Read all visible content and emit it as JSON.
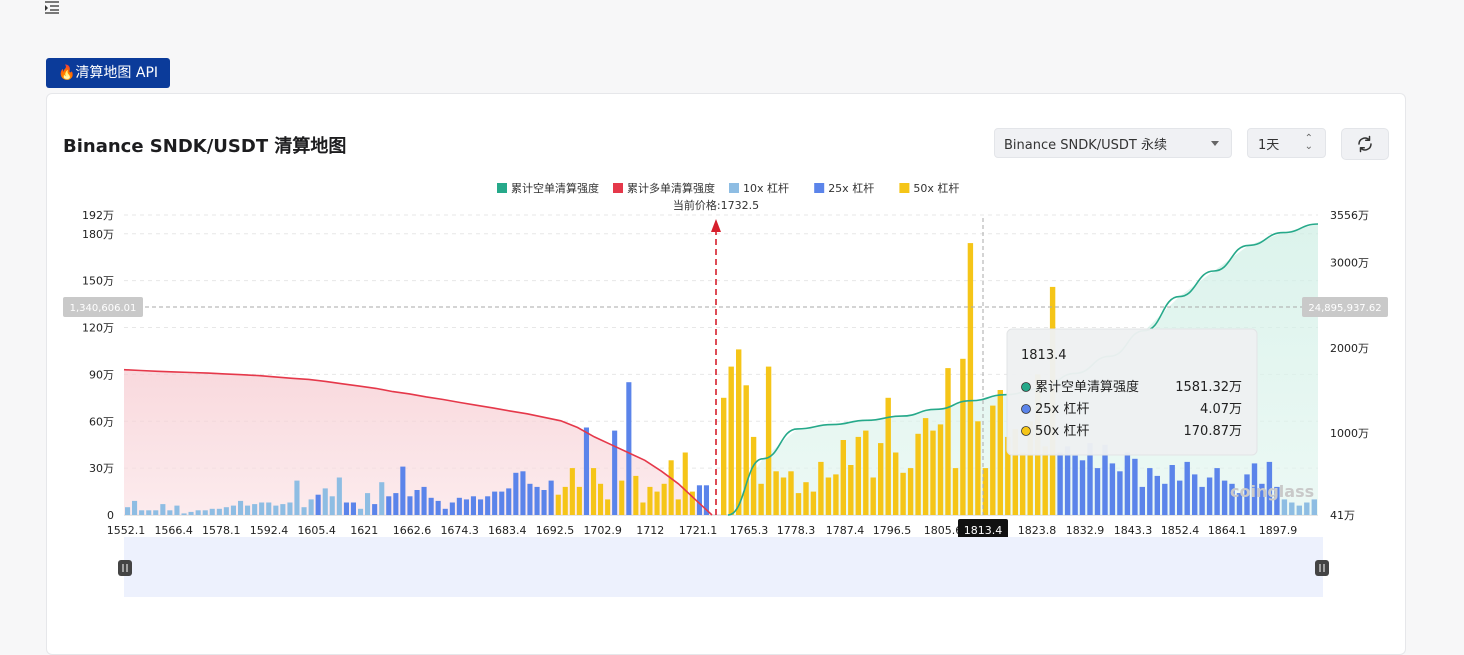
{
  "page": {
    "api_badge_label": "🔥清算地图 API",
    "card_title": "Binance SNDK/USDT 清算地图",
    "exchange_select": "Binance SNDK/USDT 永续",
    "range_select": "1天",
    "icons": {
      "menu": "menu-collapse-icon",
      "refresh": "refresh-icon",
      "flame": "flame-icon"
    }
  },
  "chart_data": {
    "type": "bar",
    "legend": [
      {
        "label": "累计空单清算强度",
        "color": "#26a98a"
      },
      {
        "label": "累计多单清算强度",
        "color": "#e5384a"
      },
      {
        "label": "10x 杠杆",
        "color": "#8ebde3"
      },
      {
        "label": "25x 杠杆",
        "color": "#5b84ea"
      },
      {
        "label": "50x 杠杆",
        "color": "#f5c518"
      }
    ],
    "current_price_label": "当前价格:1732.5",
    "current_price": 1732.5,
    "left_axis_ticks": [
      "0",
      "30万",
      "60万",
      "90万",
      "120万",
      "150万",
      "180万",
      "192万"
    ],
    "left_axis_values": [
      0,
      30,
      60,
      90,
      120,
      150,
      180,
      192
    ],
    "right_axis_ticks": [
      "41万",
      "1000万",
      "2000万",
      "3000万",
      "3556万"
    ],
    "right_axis_values": [
      41,
      1000,
      2000,
      3000,
      3556
    ],
    "x_tick_labels": [
      "1552.1",
      "1566.4",
      "1578.1",
      "1592.4",
      "1605.4",
      "1621",
      "1662.6",
      "1674.3",
      "1683.4",
      "1692.5",
      "1702.9",
      "1712",
      "1721.1",
      "1765.3",
      "1778.3",
      "1787.4",
      "1796.5",
      "1805.6",
      "1823.8",
      "1832.9",
      "1843.3",
      "1852.4",
      "1864.1",
      "1897.9"
    ],
    "crosshair": {
      "x_label": "1813.4",
      "left_value_label": "1,340,606.01",
      "right_value_label": "24,895,937.62"
    },
    "tooltip": {
      "title": "1813.4",
      "rows": [
        {
          "label": "累计空单清算强度",
          "value": "1581.32万",
          "color": "#26a98a"
        },
        {
          "label": "25x 杠杆",
          "value": "4.07万",
          "color": "#5b84ea"
        },
        {
          "label": "50x 杠杆",
          "value": "170.87万",
          "color": "#f5c518"
        }
      ]
    },
    "watermark": "coinglass",
    "unit_left": "万",
    "unit_right": "万",
    "long_side_bars": [
      [
        5,
        8,
        "10x"
      ],
      [
        9,
        8,
        "10x"
      ],
      [
        3,
        8,
        "10x"
      ],
      [
        3,
        8,
        "10x"
      ],
      [
        3,
        8,
        "10x"
      ],
      [
        7,
        8,
        "10x"
      ],
      [
        3,
        8,
        "10x"
      ],
      [
        6,
        8,
        "10x"
      ],
      [
        1,
        8,
        "10x"
      ],
      [
        2,
        8,
        "10x"
      ],
      [
        3,
        8,
        "10x"
      ],
      [
        3,
        8,
        "10x"
      ],
      [
        4,
        8,
        "10x"
      ],
      [
        4,
        8,
        "10x"
      ],
      [
        5,
        8,
        "10x"
      ],
      [
        6,
        8,
        "10x"
      ],
      [
        9,
        8,
        "10x"
      ],
      [
        6,
        8,
        "10x"
      ],
      [
        7,
        8,
        "10x"
      ],
      [
        8,
        8,
        "10x"
      ],
      [
        8,
        8,
        "10x"
      ],
      [
        6,
        8,
        "10x"
      ],
      [
        7,
        8,
        "10x"
      ],
      [
        8,
        8,
        "10x"
      ],
      [
        22,
        8,
        "10x"
      ],
      [
        5,
        8,
        "10x"
      ],
      [
        10,
        8,
        "10x"
      ],
      [
        13,
        8,
        "25x"
      ],
      [
        17,
        8,
        "10x"
      ],
      [
        12,
        8,
        "10x"
      ],
      [
        24,
        8,
        "10x"
      ],
      [
        8,
        8,
        "25x"
      ],
      [
        8,
        8,
        "25x"
      ],
      [
        4,
        8,
        "10x"
      ],
      [
        14,
        8,
        "10x"
      ],
      [
        7,
        8,
        "25x"
      ],
      [
        21,
        8,
        "10x"
      ],
      [
        12,
        8,
        "25x"
      ],
      [
        14,
        8,
        "25x"
      ],
      [
        31,
        8,
        "25x"
      ],
      [
        12,
        8,
        "25x"
      ],
      [
        16,
        8,
        "25x"
      ],
      [
        18,
        8,
        "25x"
      ],
      [
        11,
        8,
        "25x"
      ],
      [
        9,
        8,
        "25x"
      ],
      [
        4,
        8,
        "25x"
      ],
      [
        8,
        8,
        "25x"
      ],
      [
        11,
        8,
        "25x"
      ],
      [
        10,
        8,
        "25x"
      ],
      [
        12,
        8,
        "25x"
      ],
      [
        10,
        8,
        "25x"
      ],
      [
        12,
        8,
        "25x"
      ],
      [
        15,
        8,
        "25x"
      ],
      [
        15,
        8,
        "25x"
      ],
      [
        17,
        8,
        "25x"
      ],
      [
        27,
        8,
        "25x"
      ],
      [
        28,
        8,
        "25x"
      ],
      [
        20,
        8,
        "25x"
      ],
      [
        18,
        8,
        "25x"
      ],
      [
        16,
        8,
        "25x"
      ],
      [
        22,
        8,
        "25x"
      ],
      [
        13,
        110,
        "50x"
      ],
      [
        18,
        16,
        "50x"
      ],
      [
        30,
        10,
        "50x"
      ],
      [
        18,
        16,
        "50x"
      ],
      [
        56,
        8,
        "25x"
      ],
      [
        30,
        26,
        "50x"
      ],
      [
        20,
        11,
        "50x"
      ],
      [
        10,
        15,
        "50x"
      ],
      [
        54,
        8,
        "25x"
      ],
      [
        22,
        10,
        "50x"
      ],
      [
        85,
        8,
        "25x"
      ],
      [
        25,
        16,
        "50x"
      ],
      [
        8,
        44,
        "50x"
      ],
      [
        18,
        27,
        "50x"
      ],
      [
        15,
        27,
        "50x"
      ],
      [
        20,
        26,
        "50x"
      ],
      [
        35,
        18,
        "50x"
      ],
      [
        10,
        50,
        "50x"
      ],
      [
        40,
        15,
        "50x"
      ],
      [
        15,
        30,
        "50x"
      ],
      [
        19,
        8,
        "25x"
      ],
      [
        19,
        8,
        "25x"
      ]
    ],
    "short_side_bars": [
      [
        75,
        "50x"
      ],
      [
        95,
        "50x"
      ],
      [
        106,
        "50x"
      ],
      [
        83,
        "50x"
      ],
      [
        50,
        "50x"
      ],
      [
        20,
        "50x"
      ],
      [
        95,
        "50x"
      ],
      [
        28,
        "50x"
      ],
      [
        24,
        "50x"
      ],
      [
        28,
        "50x"
      ],
      [
        14,
        "50x"
      ],
      [
        21,
        "50x"
      ],
      [
        15,
        "50x"
      ],
      [
        34,
        "50x"
      ],
      [
        24,
        "50x"
      ],
      [
        26,
        "50x"
      ],
      [
        48,
        "50x"
      ],
      [
        32,
        "50x"
      ],
      [
        50,
        "50x"
      ],
      [
        54,
        "50x"
      ],
      [
        24,
        "50x"
      ],
      [
        46,
        "50x"
      ],
      [
        75,
        "50x"
      ],
      [
        40,
        "50x"
      ],
      [
        27,
        "50x"
      ],
      [
        30,
        "50x"
      ],
      [
        52,
        "50x"
      ],
      [
        62,
        "50x"
      ],
      [
        54,
        "50x"
      ],
      [
        58,
        "50x"
      ],
      [
        94,
        "50x"
      ],
      [
        30,
        "50x"
      ],
      [
        100,
        "50x"
      ],
      [
        174,
        "50x"
      ],
      [
        60,
        "50x"
      ],
      [
        30,
        "50x"
      ],
      [
        70,
        "50x"
      ],
      [
        80,
        "50x"
      ],
      [
        50,
        "50x"
      ],
      [
        55,
        "50x"
      ],
      [
        40,
        "50x"
      ],
      [
        60,
        "50x"
      ],
      [
        90,
        "50x"
      ],
      [
        44,
        "50x"
      ],
      [
        146,
        "50x"
      ],
      [
        40,
        "25x"
      ],
      [
        44,
        "25x"
      ],
      [
        38,
        "25x"
      ],
      [
        35,
        "25x"
      ],
      [
        46,
        "25x"
      ],
      [
        30,
        "25x"
      ],
      [
        45,
        "25x"
      ],
      [
        33,
        "25x"
      ],
      [
        28,
        "25x"
      ],
      [
        40,
        "25x"
      ],
      [
        36,
        "25x"
      ],
      [
        18,
        "25x"
      ],
      [
        30,
        "25x"
      ],
      [
        25,
        "25x"
      ],
      [
        20,
        "25x"
      ],
      [
        32,
        "25x"
      ],
      [
        22,
        "25x"
      ],
      [
        34,
        "25x"
      ],
      [
        26,
        "25x"
      ],
      [
        18,
        "25x"
      ],
      [
        24,
        "25x"
      ],
      [
        30,
        "25x"
      ],
      [
        22,
        "25x"
      ],
      [
        20,
        "25x"
      ],
      [
        14,
        "25x"
      ],
      [
        26,
        "25x"
      ],
      [
        33,
        "25x"
      ],
      [
        20,
        "25x"
      ],
      [
        34,
        "25x"
      ],
      [
        18,
        "25x"
      ],
      [
        10,
        "10x"
      ],
      [
        8,
        "10x"
      ],
      [
        6,
        "10x"
      ],
      [
        8,
        "10x"
      ],
      [
        10,
        "10x"
      ]
    ],
    "long_cumulative_line": [
      93,
      92.5,
      92,
      91.6,
      91.2,
      90.8,
      90.3,
      89.8,
      89.2,
      88.4,
      87.5,
      86.8,
      85.5,
      84,
      82.5,
      81,
      79,
      77.5,
      75.6,
      73.9,
      72,
      70.2,
      68.4,
      66.5,
      64.8,
      62.5,
      60.3,
      56,
      50,
      45,
      40,
      35,
      28,
      20,
      10,
      0
    ],
    "short_cumulative_line": [
      41,
      700,
      1050,
      1100,
      1150,
      1200,
      1280,
      1380,
      1450,
      1520,
      1700,
      1900,
      2200,
      2600,
      2900,
      3200,
      3350,
      3450
    ]
  }
}
